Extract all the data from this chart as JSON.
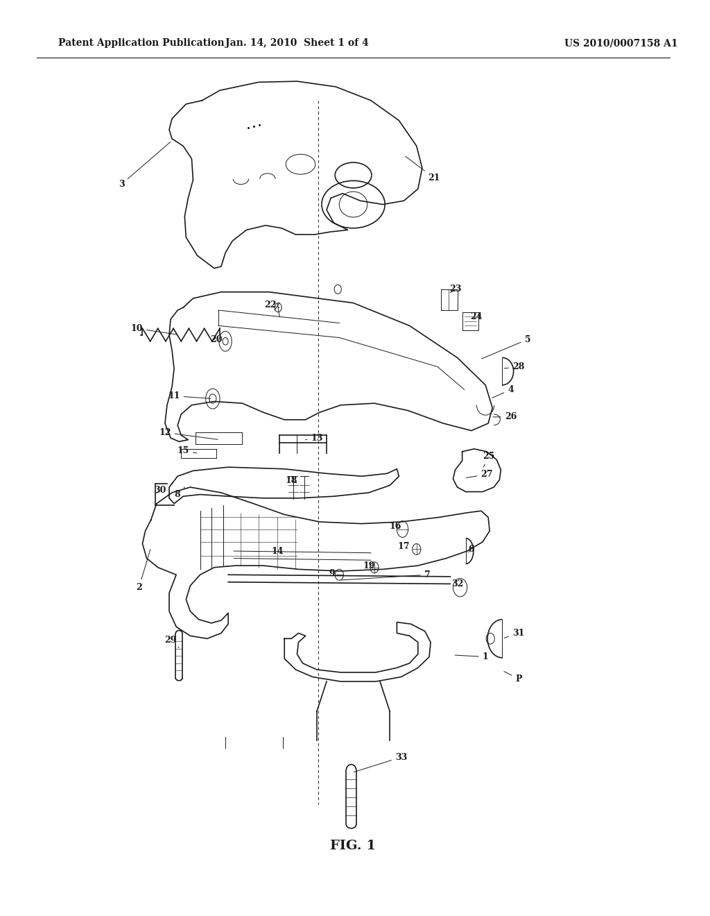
{
  "title_left": "Patent Application Publication",
  "title_center": "Jan. 14, 2010  Sheet 1 of 4",
  "title_right": "US 2010/0007158 A1",
  "fig_label": "FIG. 1",
  "background_color": "#ffffff",
  "line_color": "#1a1a1a",
  "text_color": "#1a1a1a",
  "header_fontsize": 10,
  "fig_label_fontsize": 14,
  "ref_fontsize": 9
}
